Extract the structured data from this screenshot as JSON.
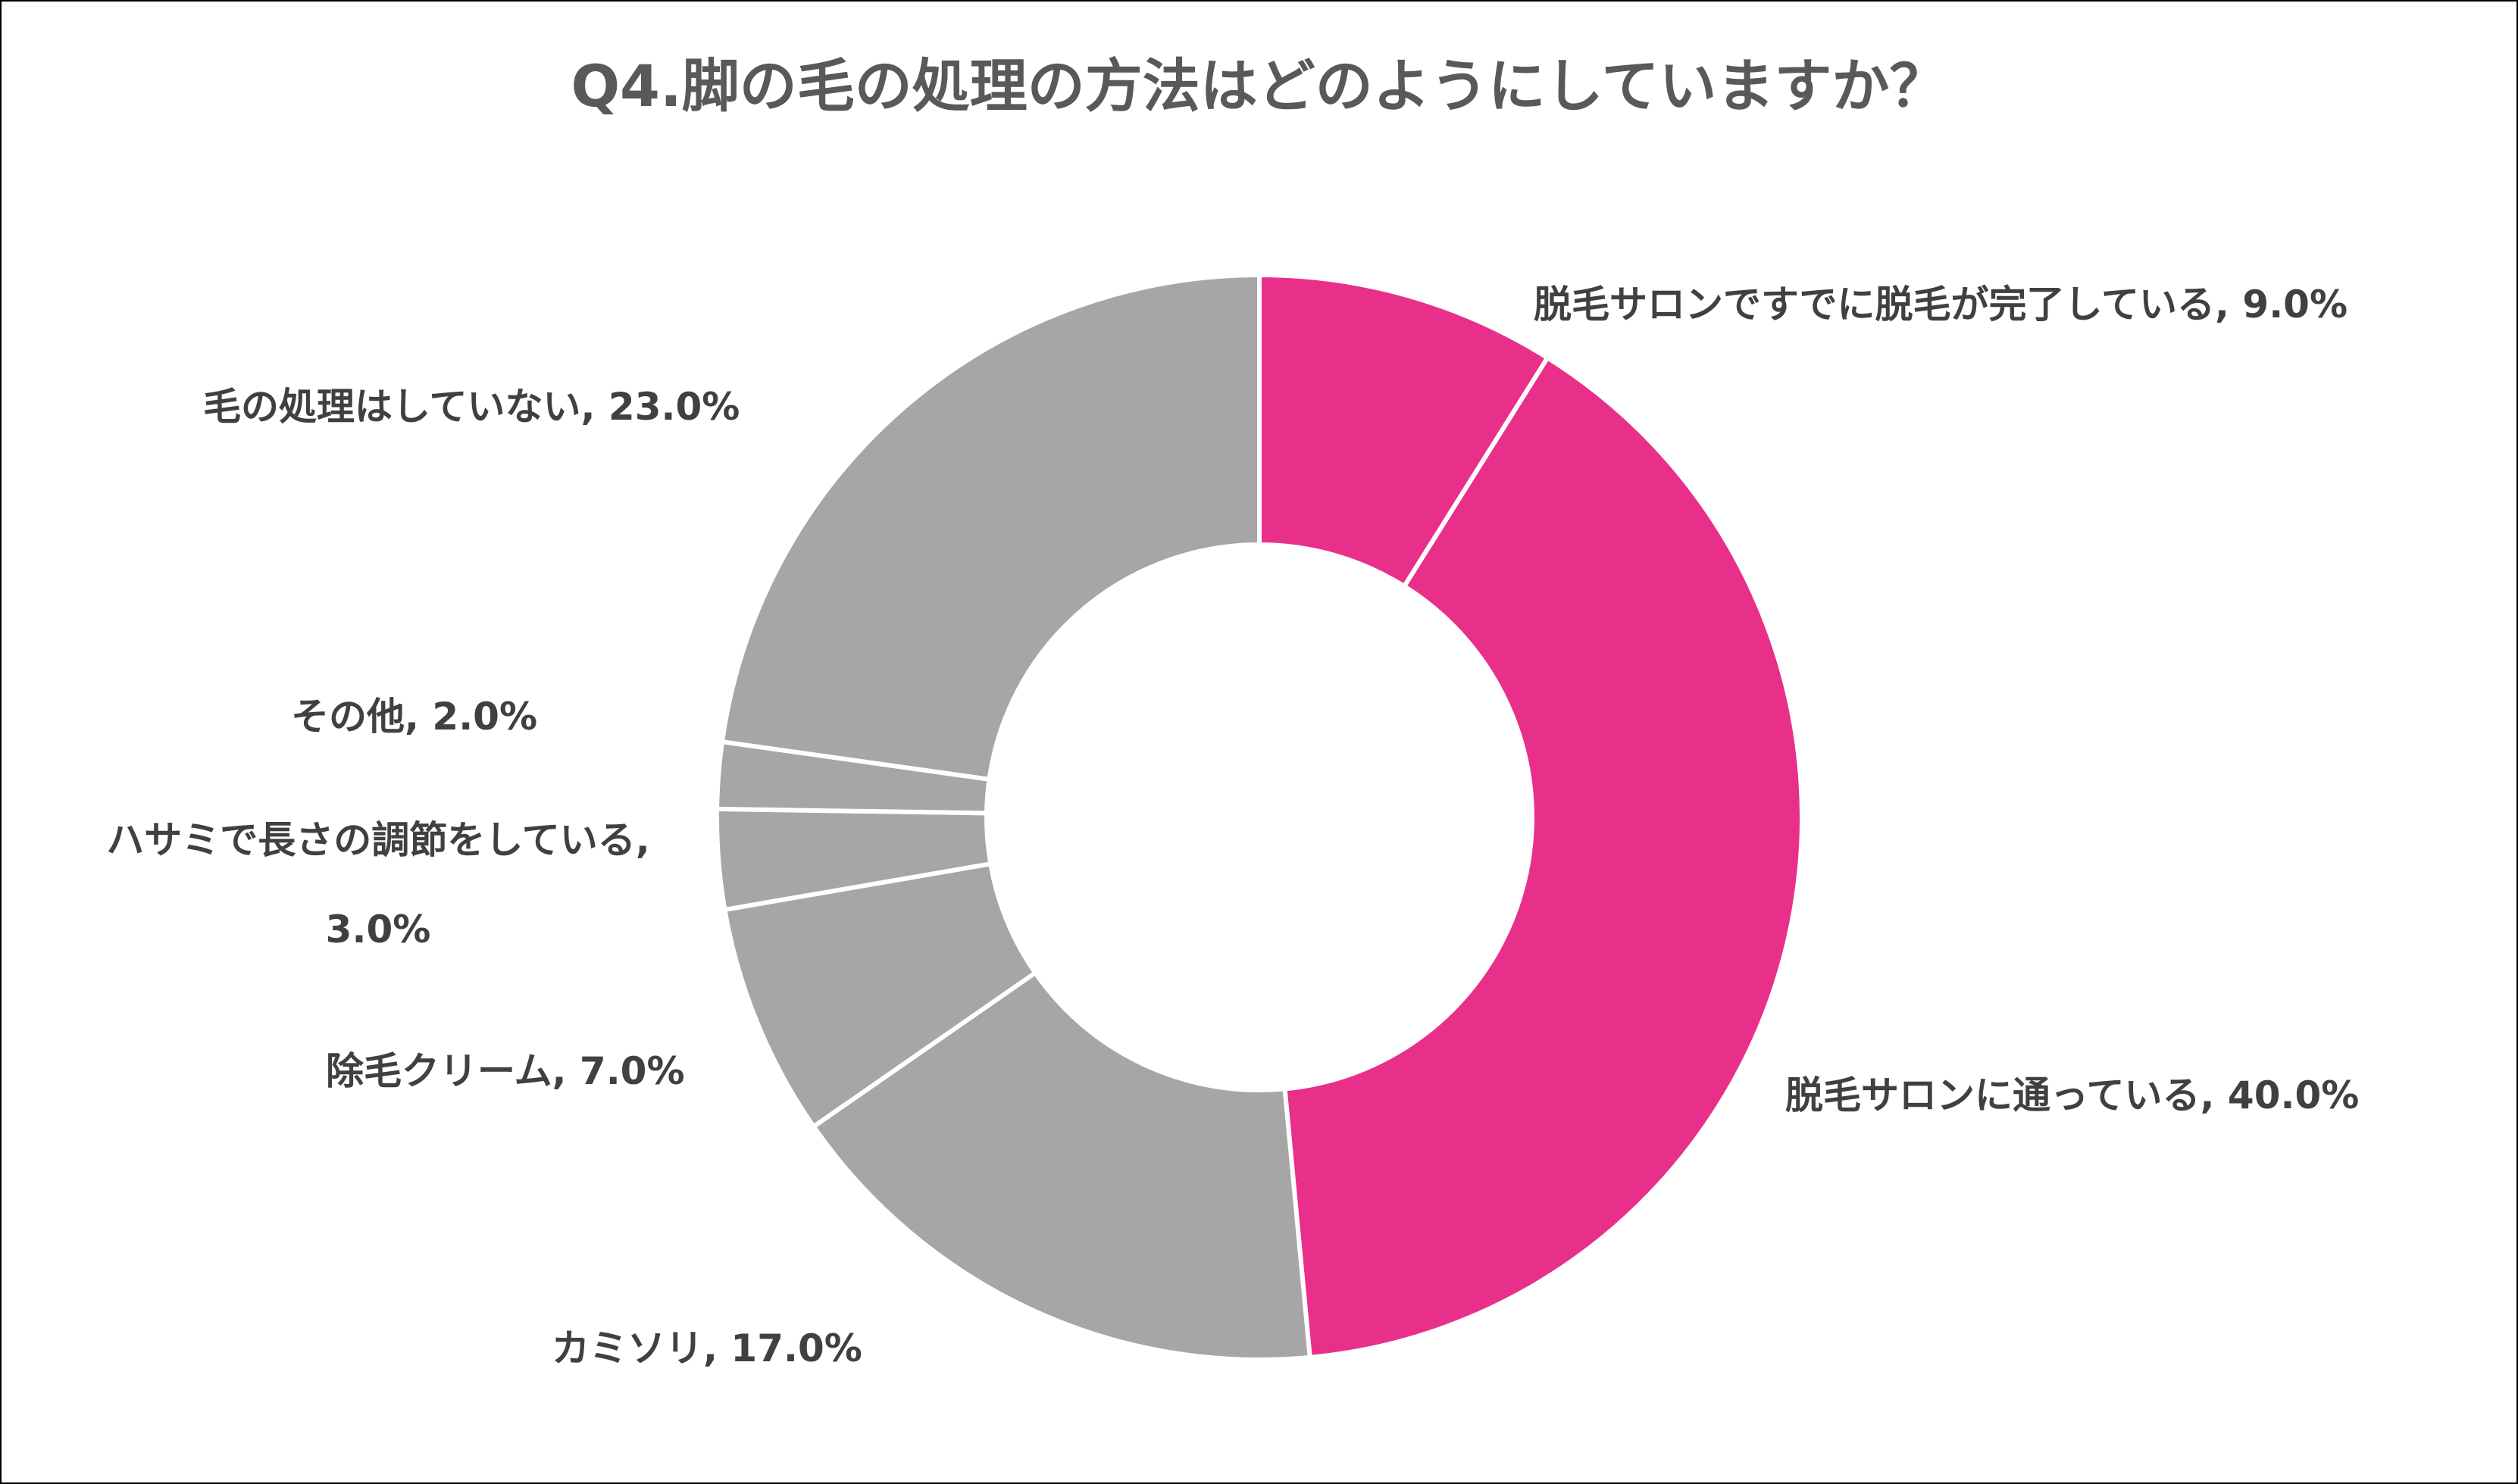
{
  "chart_data": {
    "type": "pie",
    "variant": "donut",
    "title": "Q4.脚の毛の処理の方法はどのようにしていますか？",
    "legend": "none",
    "value_unit": "%",
    "slices": [
      {
        "label": "脱毛サロンですでに脱毛が完了している",
        "value": 9.0,
        "display": "脱毛サロンですでに脱毛が完了している, 9.0%",
        "color": "#E8308A"
      },
      {
        "label": "脱毛サロンに通っている",
        "value": 40.0,
        "display": "脱毛サロンに通っている, 40.0%",
        "color": "#E8308A"
      },
      {
        "label": "カミソリ",
        "value": 17.0,
        "display": "カミソリ, 17.0%",
        "color": "#A6A6A6"
      },
      {
        "label": "除毛クリーム",
        "value": 7.0,
        "display": "除毛クリーム, 7.0%",
        "color": "#A6A6A6"
      },
      {
        "label": "ハサミで長さの調節をしている",
        "value": 3.0,
        "display_line1": "ハサミで長さの調節をしている,",
        "display_line2": "3.0%",
        "color": "#A6A6A6"
      },
      {
        "label": "その他",
        "value": 2.0,
        "display": "その他, 2.0%",
        "color": "#A6A6A6"
      },
      {
        "label": "毛の処理はしていない",
        "value": 23.0,
        "display": "毛の処理はしていない, 23.0%",
        "color": "#A6A6A6"
      }
    ]
  }
}
